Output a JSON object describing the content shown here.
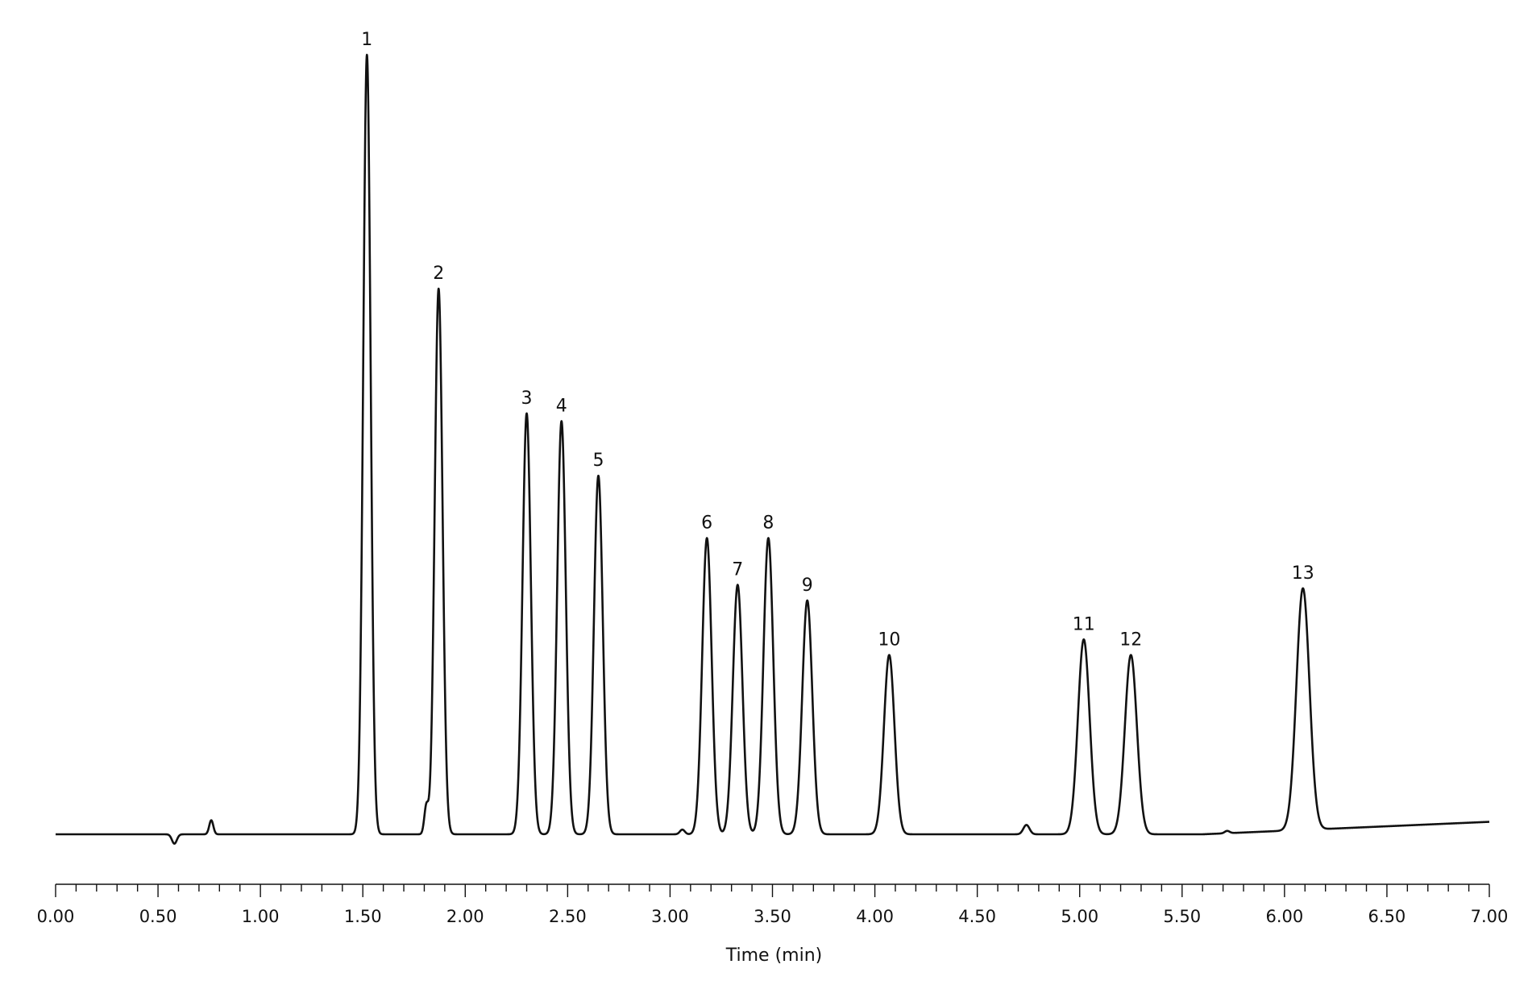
{
  "chart_data": {
    "type": "line",
    "title": "",
    "xlabel": "Time (min)",
    "ylabel": "",
    "xlim": [
      0,
      7
    ],
    "ylim": [
      0,
      1
    ],
    "grid": false,
    "x_ticks": [
      "0.00",
      "0.50",
      "1.00",
      "1.50",
      "2.00",
      "2.50",
      "3.00",
      "3.50",
      "4.00",
      "4.50",
      "5.00",
      "5.50",
      "6.00",
      "6.50",
      "7.00"
    ],
    "minor_tick_step": 0.1,
    "line_color": "#111111",
    "baseline": {
      "start": 0.0,
      "end_rise": 0.016,
      "rise_from": 5.6
    },
    "peaks": [
      {
        "label": "1",
        "rt": 1.52,
        "height": 1.0
      },
      {
        "label": "2",
        "rt": 1.87,
        "height": 0.7
      },
      {
        "label": "3",
        "rt": 2.3,
        "height": 0.54
      },
      {
        "label": "4",
        "rt": 2.47,
        "height": 0.53
      },
      {
        "label": "5",
        "rt": 2.65,
        "height": 0.46
      },
      {
        "label": "6",
        "rt": 3.18,
        "height": 0.38
      },
      {
        "label": "7",
        "rt": 3.33,
        "height": 0.32
      },
      {
        "label": "8",
        "rt": 3.48,
        "height": 0.38
      },
      {
        "label": "9",
        "rt": 3.67,
        "height": 0.3
      },
      {
        "label": "10",
        "rt": 4.07,
        "height": 0.23
      },
      {
        "label": "11",
        "rt": 5.02,
        "height": 0.25
      },
      {
        "label": "12",
        "rt": 5.25,
        "height": 0.23
      },
      {
        "label": "13",
        "rt": 6.09,
        "height": 0.31
      }
    ],
    "minor_features": [
      {
        "rt": 0.58,
        "height": -0.012,
        "width": 0.012
      },
      {
        "rt": 0.76,
        "height": 0.018,
        "width": 0.01
      },
      {
        "rt": 1.81,
        "height": 0.035,
        "width": 0.01
      },
      {
        "rt": 3.06,
        "height": 0.006,
        "width": 0.012
      },
      {
        "rt": 4.74,
        "height": 0.012,
        "width": 0.015
      },
      {
        "rt": 5.72,
        "height": 0.003,
        "width": 0.012
      }
    ]
  }
}
